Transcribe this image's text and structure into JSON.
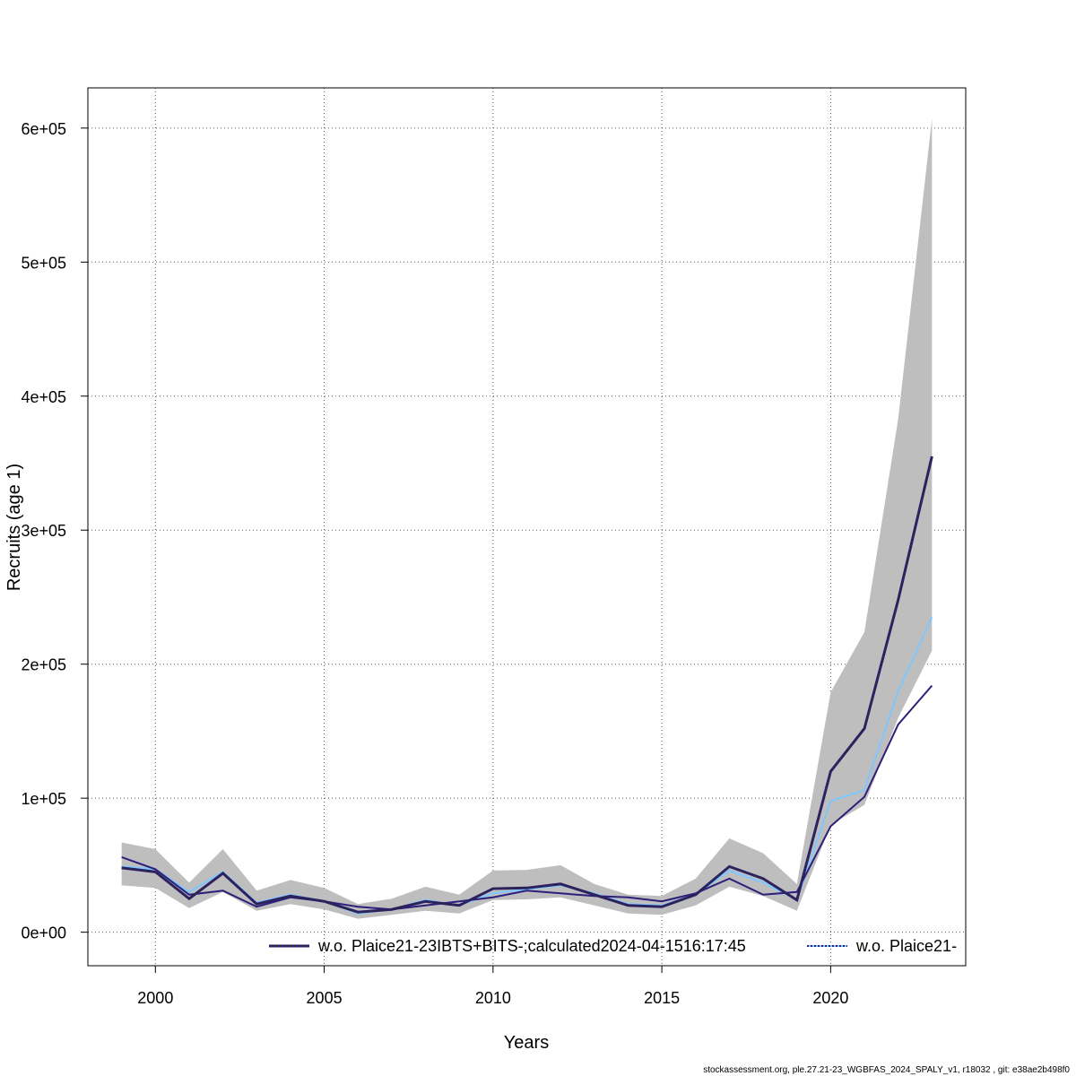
{
  "chart_data": {
    "type": "line",
    "xlabel": "Years",
    "ylabel": "Recruits (age 1)",
    "xlim": [
      1998,
      2024
    ],
    "ylim": [
      -25000,
      630000
    ],
    "x_ticks": [
      2000,
      2005,
      2010,
      2015,
      2020
    ],
    "y_ticks": [
      0,
      100000,
      200000,
      300000,
      400000,
      500000,
      600000
    ],
    "y_tick_labels": [
      "0e+00",
      "1e+05",
      "2e+05",
      "3e+05",
      "4e+05",
      "5e+05",
      "6e+05"
    ],
    "grid": true,
    "legend_placement": "bottom",
    "x": [
      1999,
      2000,
      2001,
      2002,
      2003,
      2004,
      2005,
      2006,
      2007,
      2008,
      2009,
      2010,
      2011,
      2012,
      2013,
      2014,
      2015,
      2016,
      2017,
      2018,
      2019,
      2020,
      2021,
      2022,
      2023
    ],
    "confidence_band": {
      "color": "#bebebe",
      "lower": [
        35000,
        33000,
        18000,
        30000,
        16000,
        21000,
        17000,
        10000,
        13000,
        16000,
        14000,
        24000,
        24500,
        26000,
        20000,
        14000,
        13000,
        20000,
        34000,
        27000,
        16000,
        80000,
        95000,
        160000,
        210000
      ],
      "upper": [
        67000,
        62000,
        37000,
        62000,
        31000,
        39000,
        33000,
        21000,
        25000,
        34000,
        28000,
        46000,
        46500,
        50000,
        36000,
        28000,
        27000,
        40000,
        70000,
        59000,
        36000,
        179000,
        224000,
        383000,
        607000
      ]
    },
    "series": [
      {
        "name": "w.o. Plaice21-23IBTS+BITS-;calculated2024-04-1516:17:45",
        "color": "#2d1f7a",
        "values": [
          48000,
          45000,
          25000,
          44000,
          21000,
          27000,
          23000,
          15000,
          17000,
          23000,
          20000,
          32500,
          33000,
          36000,
          28000,
          20000,
          19000,
          28000,
          49000,
          40000,
          24000,
          120000,
          152000,
          248000,
          355000
        ]
      },
      {
        "name": "w.o. Plaice21-",
        "color": "#7ec8ff",
        "values": [
          49000,
          47000,
          30000,
          45000,
          22000,
          28000,
          23000,
          14000,
          17000,
          24000,
          20000,
          29000,
          32000,
          35000,
          29000,
          21000,
          20000,
          28000,
          46000,
          37000,
          24000,
          98000,
          106000,
          180000,
          235000
        ]
      },
      {
        "name": "",
        "color": "#2d1f7a",
        "values": [
          56000,
          47000,
          28000,
          31000,
          19000,
          26000,
          23000,
          19000,
          17000,
          20000,
          23000,
          26000,
          31000,
          29000,
          27000,
          26000,
          23000,
          29000,
          40000,
          28000,
          30000,
          79000,
          101000,
          155000,
          184000
        ]
      }
    ]
  },
  "footer": {
    "text": "stockassessment.org, ple.27.21-23_WGBFAS_2024_SPALY_v1, r18032 , git: e38ae2b498f0"
  }
}
